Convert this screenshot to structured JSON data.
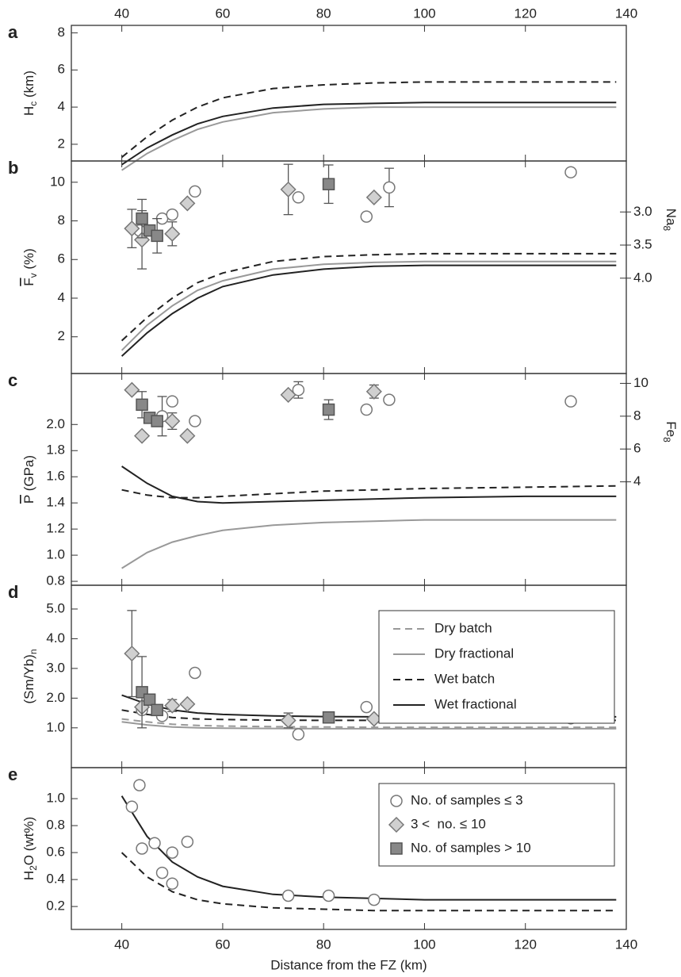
{
  "chart_data": [
    {
      "type": "line",
      "label": "a",
      "xlim": [
        30,
        140
      ],
      "xticks": [
        40,
        60,
        80,
        100,
        120,
        140
      ],
      "xtick_side": "top",
      "ylim": [
        1.1,
        8.4
      ],
      "yticks": [
        2,
        4,
        6,
        8
      ],
      "ylabel": {
        "main": "H",
        "sub": "c",
        "rest": " (km)"
      },
      "series": [
        {
          "style": "dashed",
          "color": "#222222",
          "x": [
            40,
            45,
            50,
            55,
            60,
            70,
            80,
            90,
            100,
            120,
            138
          ],
          "values": [
            1.3,
            2.4,
            3.3,
            4.0,
            4.5,
            5.0,
            5.2,
            5.3,
            5.35,
            5.35,
            5.35
          ]
        },
        {
          "style": "solid",
          "color": "#222222",
          "x": [
            40,
            45,
            50,
            55,
            60,
            70,
            80,
            90,
            100,
            120,
            138
          ],
          "values": [
            0.9,
            1.8,
            2.5,
            3.1,
            3.5,
            3.95,
            4.15,
            4.2,
            4.25,
            4.25,
            4.25
          ]
        },
        {
          "style": "solid",
          "color": "#999999",
          "x": [
            40,
            45,
            50,
            55,
            60,
            70,
            80,
            90,
            100,
            120,
            138
          ],
          "values": [
            0.6,
            1.5,
            2.2,
            2.8,
            3.2,
            3.7,
            3.9,
            4.0,
            4.0,
            4.0,
            4.0
          ]
        }
      ]
    },
    {
      "type": "line",
      "label": "b",
      "xlim": [
        30,
        140
      ],
      "ylim": [
        0.1,
        11.1
      ],
      "yticks": [
        2,
        4,
        6,
        8,
        10
      ],
      "ylabel": {
        "main": "F",
        "sub": "v",
        "rest": " (%)",
        "overline": true
      },
      "y2lim": [
        5.44,
        2.23
      ],
      "y2ticks": [
        {
          "value": 3,
          "label": "3.0"
        },
        3.5,
        {
          "value": 4,
          "label": "4.0"
        }
      ],
      "y2label": {
        "main": "Na",
        "sub": "8"
      },
      "series": [
        {
          "style": "dashed",
          "color": "#222222",
          "x": [
            40,
            45,
            50,
            55,
            60,
            70,
            80,
            90,
            100,
            120,
            138
          ],
          "values": [
            1.8,
            3.0,
            4.0,
            4.8,
            5.3,
            5.9,
            6.15,
            6.25,
            6.3,
            6.3,
            6.3
          ]
        },
        {
          "style": "solid",
          "color": "#999999",
          "x": [
            40,
            45,
            50,
            55,
            60,
            70,
            80,
            90,
            100,
            120,
            138
          ],
          "values": [
            1.3,
            2.6,
            3.6,
            4.4,
            4.9,
            5.5,
            5.75,
            5.85,
            5.9,
            5.9,
            5.9
          ]
        },
        {
          "style": "solid",
          "color": "#222222",
          "x": [
            40,
            45,
            50,
            55,
            60,
            70,
            80,
            90,
            100,
            120,
            138
          ],
          "values": [
            1.0,
            2.2,
            3.2,
            4.0,
            4.6,
            5.2,
            5.5,
            5.65,
            5.7,
            5.7,
            5.7
          ]
        },
        {
          "marker": "circle",
          "axis": "y2",
          "x": [
            43.5,
            48,
            50,
            54.5,
            75,
            88.5,
            93,
            129
          ],
          "values": [
            3.28,
            3.1,
            3.04,
            2.69,
            2.78,
            3.07,
            2.63,
            2.4
          ],
          "errors": [
            null,
            null,
            null,
            null,
            null,
            null,
            0.29,
            null
          ]
        },
        {
          "marker": "diamond",
          "axis": "y2",
          "x": [
            42,
            44,
            50,
            53,
            73,
            90
          ],
          "values": [
            3.25,
            3.42,
            3.33,
            2.87,
            2.66,
            2.78
          ],
          "errors": [
            0.29,
            0.44,
            0.18,
            null,
            0.38,
            null
          ]
        },
        {
          "marker": "square",
          "axis": "y2",
          "x": [
            44,
            45.5,
            47,
            81
          ],
          "values": [
            3.1,
            3.28,
            3.36,
            2.58
          ],
          "errors": [
            0.29,
            null,
            0.26,
            0.29
          ]
        }
      ]
    },
    {
      "type": "line",
      "label": "c",
      "xlim": [
        30,
        140
      ],
      "ylim": [
        0.77,
        2.39
      ],
      "yticks": [
        0.8,
        {
          "value": 1,
          "label": "1.0"
        },
        1.2,
        1.4,
        1.6,
        1.8,
        {
          "value": 2,
          "label": "2.0"
        }
      ],
      "ylabel": {
        "main": "P",
        "rest": " (GPa)",
        "overline": true
      },
      "y2lim": [
        -2.3,
        10.6
      ],
      "y2ticks": [
        4,
        6,
        8,
        10
      ],
      "y2label": {
        "main": "Fe",
        "sub": "8"
      },
      "series": [
        {
          "style": "solid",
          "color": "#222222",
          "x": [
            40,
            45,
            50,
            55,
            60,
            70,
            80,
            90,
            100,
            120,
            138
          ],
          "values": [
            1.68,
            1.55,
            1.45,
            1.41,
            1.4,
            1.41,
            1.42,
            1.43,
            1.44,
            1.45,
            1.45
          ]
        },
        {
          "style": "dashed",
          "color": "#222222",
          "x": [
            40,
            45,
            50,
            55,
            60,
            70,
            80,
            90,
            100,
            120,
            138
          ],
          "values": [
            1.5,
            1.46,
            1.44,
            1.44,
            1.45,
            1.47,
            1.49,
            1.5,
            1.51,
            1.52,
            1.53
          ]
        },
        {
          "style": "solid",
          "color": "#999999",
          "x": [
            40,
            45,
            50,
            55,
            60,
            70,
            80,
            90,
            100,
            120,
            138
          ],
          "values": [
            0.9,
            1.02,
            1.1,
            1.15,
            1.19,
            1.23,
            1.25,
            1.26,
            1.27,
            1.27,
            1.27
          ]
        },
        {
          "marker": "circle",
          "axis": "y2",
          "x": [
            48,
            50,
            54.5,
            75,
            88.5,
            93,
            129
          ],
          "values": [
            8.0,
            8.9,
            7.7,
            9.6,
            8.4,
            9.0,
            8.9
          ],
          "errors": [
            1.2,
            null,
            null,
            0.5,
            null,
            null,
            null
          ]
        },
        {
          "marker": "diamond",
          "axis": "y2",
          "x": [
            42,
            44,
            50,
            53,
            73,
            90
          ],
          "values": [
            9.6,
            6.8,
            7.7,
            6.8,
            9.3,
            9.5
          ],
          "errors": [
            null,
            null,
            0.5,
            null,
            null,
            0.4
          ]
        },
        {
          "marker": "square",
          "axis": "y2",
          "x": [
            44,
            45.5,
            47,
            81
          ],
          "values": [
            8.7,
            7.9,
            7.7,
            8.4
          ],
          "errors": [
            0.8,
            null,
            null,
            0.6
          ]
        }
      ]
    },
    {
      "type": "line",
      "label": "d",
      "xlim": [
        30,
        140
      ],
      "ylim": [
        -0.34,
        5.8
      ],
      "yticks": [
        {
          "value": 1,
          "label": "1.0"
        },
        {
          "value": 2,
          "label": "2.0"
        },
        {
          "value": 3,
          "label": "3.0"
        },
        {
          "value": 4,
          "label": "4.0"
        },
        {
          "value": 5,
          "label": "5.0"
        }
      ],
      "ylabel": {
        "main": "(Sm/Yb)",
        "sub": "n"
      },
      "series": [
        {
          "name": "Dry batch",
          "style": "dashed",
          "color": "#999999",
          "x": [
            40,
            45,
            50,
            55,
            60,
            70,
            80,
            90,
            100,
            120,
            138
          ],
          "values": [
            1.3,
            1.2,
            1.12,
            1.08,
            1.06,
            1.04,
            1.03,
            1.02,
            1.02,
            1.02,
            1.02
          ]
        },
        {
          "name": "Dry fractional",
          "style": "solid",
          "color": "#999999",
          "x": [
            40,
            45,
            50,
            55,
            60,
            70,
            80,
            90,
            100,
            120,
            138
          ],
          "values": [
            1.2,
            1.1,
            1.03,
            1.0,
            0.99,
            0.98,
            0.97,
            0.97,
            0.97,
            0.97,
            0.97
          ]
        },
        {
          "name": "Wet batch",
          "style": "dashed",
          "color": "#222222",
          "x": [
            40,
            45,
            50,
            55,
            60,
            70,
            80,
            90,
            100,
            120,
            138
          ],
          "values": [
            1.6,
            1.45,
            1.35,
            1.3,
            1.28,
            1.26,
            1.25,
            1.25,
            1.25,
            1.25,
            1.25
          ]
        },
        {
          "name": "Wet fractional",
          "style": "solid",
          "color": "#222222",
          "x": [
            40,
            45,
            50,
            55,
            60,
            70,
            80,
            90,
            100,
            120,
            138
          ],
          "values": [
            2.1,
            1.8,
            1.6,
            1.5,
            1.45,
            1.4,
            1.38,
            1.37,
            1.37,
            1.37,
            1.37
          ]
        },
        {
          "marker": "circle",
          "x": [
            44,
            48,
            54.5,
            75,
            88.5,
            93,
            129
          ],
          "values": [
            1.6,
            1.4,
            2.85,
            0.78,
            1.7,
            1.45,
            1.32
          ],
          "errors": [
            null,
            null,
            null,
            null,
            null,
            null,
            null
          ]
        },
        {
          "marker": "diamond",
          "x": [
            42,
            44,
            50,
            53,
            73,
            90
          ],
          "values": [
            3.5,
            1.7,
            1.75,
            1.8,
            1.25,
            1.3
          ],
          "errors": [
            1.45,
            null,
            0.2,
            null,
            0.25,
            null
          ]
        },
        {
          "marker": "square",
          "x": [
            44,
            45.5,
            47,
            81
          ],
          "values": [
            2.2,
            1.95,
            1.6,
            1.35
          ],
          "errors": [
            1.2,
            null,
            null,
            null
          ]
        }
      ],
      "legend": "upper right"
    },
    {
      "type": "line",
      "label": "e",
      "xlim": [
        30,
        140
      ],
      "xticks": [
        40,
        60,
        80,
        100,
        120,
        140
      ],
      "xtick_side": "bottom",
      "xlabel": "Distance from the FZ (km)",
      "ylim": [
        0.03,
        1.23
      ],
      "yticks": [
        0.2,
        0.4,
        0.6,
        0.8,
        {
          "value": 1,
          "label": "1.0"
        }
      ],
      "ylabel": {
        "main": "H",
        "sub": "2",
        "rest": "O (wt%)"
      },
      "series": [
        {
          "style": "solid",
          "color": "#222222",
          "x": [
            40,
            45,
            50,
            55,
            60,
            70,
            80,
            90,
            100,
            120,
            138
          ],
          "values": [
            1.02,
            0.72,
            0.53,
            0.42,
            0.35,
            0.29,
            0.27,
            0.26,
            0.25,
            0.25,
            0.25
          ]
        },
        {
          "style": "dashed",
          "color": "#222222",
          "x": [
            40,
            45,
            50,
            55,
            60,
            70,
            80,
            90,
            100,
            120,
            138
          ],
          "values": [
            0.6,
            0.42,
            0.31,
            0.25,
            0.22,
            0.19,
            0.18,
            0.17,
            0.17,
            0.17,
            0.17
          ]
        },
        {
          "marker": "circle",
          "x": [
            42,
            43.5,
            44,
            46.5,
            48,
            50,
            50,
            53,
            73,
            81,
            90
          ],
          "values": [
            0.94,
            1.1,
            0.63,
            0.67,
            0.45,
            0.37,
            0.6,
            0.68,
            0.28,
            0.28,
            0.25
          ],
          "errors": [
            null,
            null,
            null,
            null,
            null,
            null,
            null,
            null,
            null,
            null,
            null
          ]
        }
      ],
      "legend_entries": [
        {
          "name": "No. of samples ≤ 3",
          "marker": "circle"
        },
        {
          "name": "3 <  no. ≤ 10",
          "marker": "diamond"
        },
        {
          "name": "No. of samples > 10",
          "marker": "square"
        }
      ],
      "legend": "upper right"
    }
  ]
}
